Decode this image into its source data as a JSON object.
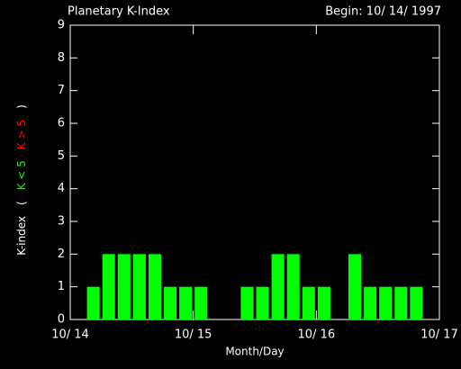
{
  "chart_data": {
    "type": "bar",
    "title": "Planetary K-Index",
    "subtitle": "Begin: 10/ 14/ 1997",
    "x_label": "Month/Day",
    "y_label": [
      {
        "text": "K-index",
        "color": "#ffffff"
      },
      {
        "text": "(",
        "color": "#ffffff"
      },
      {
        "text": "K < 5",
        "color": "#00ff00"
      },
      {
        "text": "K > 5",
        "color": "#ff0000"
      },
      {
        "text": ")",
        "color": "#ffffff"
      }
    ],
    "color": "#00ff00",
    "values": [
      null,
      1,
      2,
      2,
      2,
      2,
      1,
      1,
      1,
      null,
      null,
      1,
      1,
      2,
      2,
      1,
      1,
      null,
      2,
      1,
      1,
      1,
      1,
      null
    ],
    "xlim": [
      0,
      24
    ],
    "xticks": [
      {
        "value": 0,
        "label": "10/ 14"
      },
      {
        "value": 8,
        "label": "10/ 15"
      },
      {
        "value": 16,
        "label": "10/ 16"
      },
      {
        "value": 24,
        "label": "10/ 17"
      }
    ],
    "ylim": [
      0,
      9
    ],
    "yticks": [
      0,
      1,
      2,
      3,
      4,
      5,
      6,
      7,
      8,
      9
    ]
  }
}
